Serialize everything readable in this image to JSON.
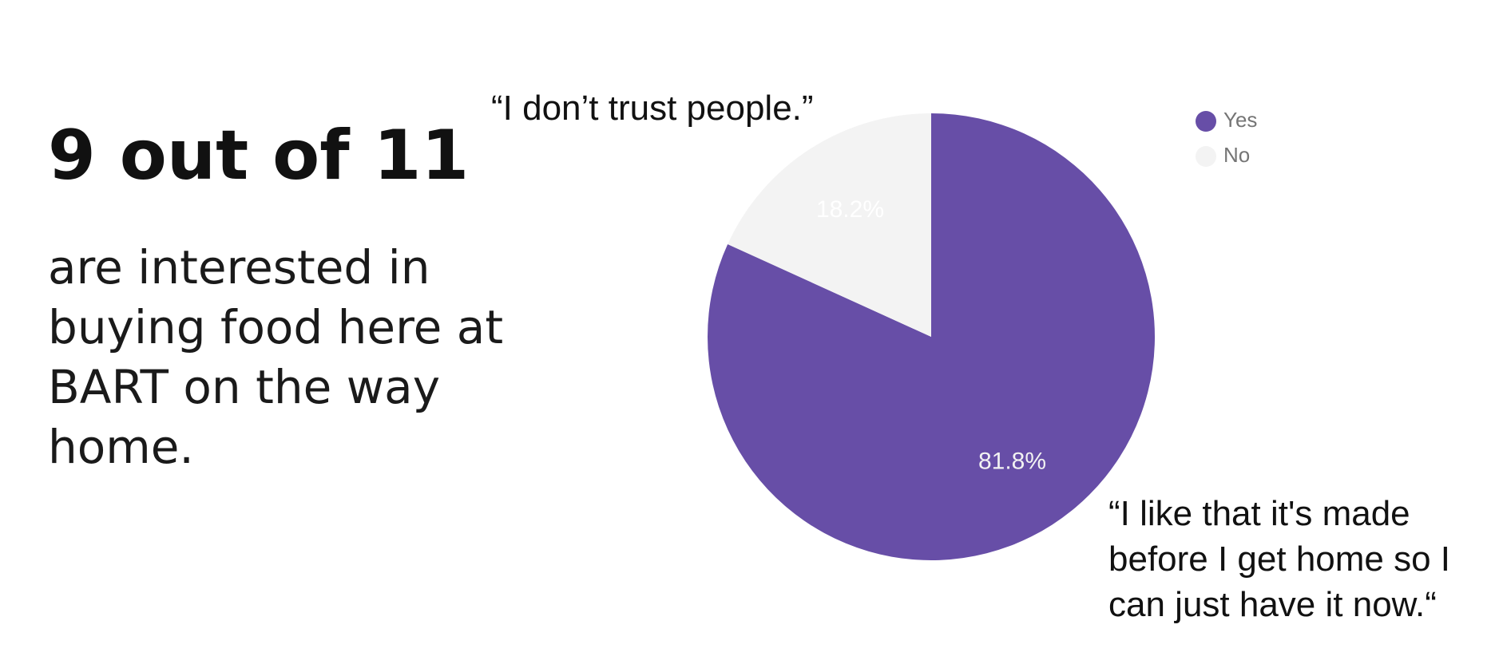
{
  "headline": "9 out of 11",
  "subtext": "are interested in buying food here at BART on the way home.",
  "quotes": {
    "top": "“I don’t trust people.”",
    "bottom": "“I like that it's made before I get home so I can just have it now.“"
  },
  "chart_data": {
    "type": "pie",
    "title": "",
    "legend_position": "top-right",
    "slices": [
      {
        "label": "Yes",
        "value": 81.8,
        "display": "81.8%",
        "color": "#674ea7",
        "label_color": "#f2f2f2"
      },
      {
        "label": "No",
        "value": 18.2,
        "display": "18.2%",
        "color": "#f3f3f3",
        "label_color": "#ffffff"
      }
    ]
  }
}
